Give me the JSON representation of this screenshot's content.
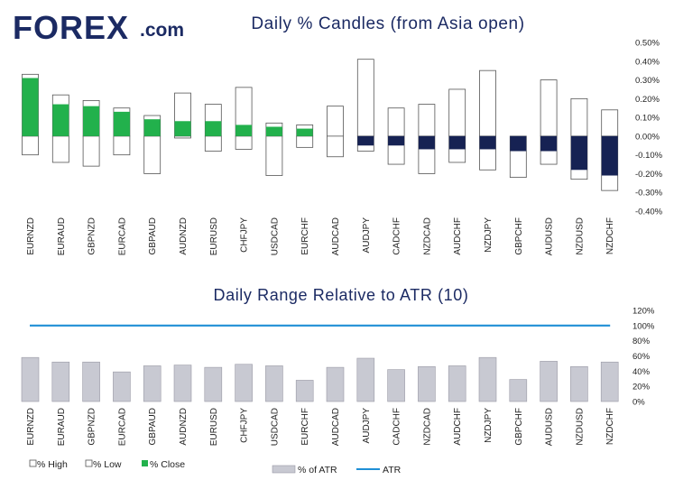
{
  "logo": {
    "main": "FOREX",
    "suffix": ".com",
    "accent_color": "#22b14c",
    "brand_color": "#1b2a63"
  },
  "colors": {
    "bull": "#22b14c",
    "bear": "#162253",
    "range_bar": "#c8c9d2",
    "atr_line": "#1f8fd6",
    "title": "#1b2a63"
  },
  "chart_data": [
    {
      "type": "candlestick",
      "title": "Daily % Candles (from Asia open)",
      "categories": [
        "EURNZD",
        "EURAUD",
        "GBPNZD",
        "EURCAD",
        "GBPAUD",
        "AUDNZD",
        "EURUSD",
        "CHFJPY",
        "USDCAD",
        "EURCHF",
        "AUDCAD",
        "AUDJPY",
        "CADCHF",
        "NZDCAD",
        "AUDCHF",
        "NZDJPY",
        "GBPCHF",
        "AUDUSD",
        "NZDUSD",
        "NZDCHF"
      ],
      "high": [
        0.33,
        0.22,
        0.19,
        0.15,
        0.11,
        0.23,
        0.17,
        0.26,
        0.07,
        0.06,
        0.16,
        0.41,
        0.15,
        0.17,
        0.25,
        0.35,
        0.0,
        0.3,
        0.2,
        0.14
      ],
      "low": [
        -0.1,
        -0.14,
        -0.16,
        -0.1,
        -0.2,
        -0.01,
        -0.08,
        -0.07,
        -0.21,
        -0.06,
        -0.11,
        -0.08,
        -0.15,
        -0.2,
        -0.14,
        -0.18,
        -0.22,
        -0.15,
        -0.23,
        -0.29
      ],
      "close": [
        0.31,
        0.17,
        0.16,
        0.13,
        0.09,
        0.08,
        0.08,
        0.06,
        0.05,
        0.04,
        0.0,
        -0.05,
        -0.05,
        -0.07,
        -0.07,
        -0.07,
        -0.08,
        -0.08,
        -0.18,
        -0.21
      ],
      "ylim": [
        -0.4,
        0.5
      ],
      "yticks": [
        "0.50%",
        "0.40%",
        "0.30%",
        "0.20%",
        "0.10%",
        "0.00%",
        "-0.10%",
        "-0.20%",
        "-0.30%",
        "-0.40%"
      ],
      "legend": [
        "% High",
        "% Low",
        "% Close"
      ],
      "legend_position": "bottom-left"
    },
    {
      "type": "bar",
      "title": "Daily Range Relative to ATR (10)",
      "categories": [
        "EURNZD",
        "EURAUD",
        "GBPNZD",
        "EURCAD",
        "GBPAUD",
        "AUDNZD",
        "EURUSD",
        "CHFJPY",
        "USDCAD",
        "EURCHF",
        "AUDCAD",
        "AUDJPY",
        "CADCHF",
        "NZDCAD",
        "AUDCHF",
        "NZDJPY",
        "GBPCHF",
        "AUDUSD",
        "NZDUSD",
        "NZDCHF"
      ],
      "values": [
        58,
        52,
        52,
        39,
        47,
        48,
        45,
        49,
        47,
        28,
        45,
        57,
        42,
        46,
        47,
        58,
        29,
        53,
        46,
        52
      ],
      "atr_line": 100,
      "ylim": [
        0,
        120
      ],
      "yticks": [
        "120%",
        "100%",
        "80%",
        "60%",
        "40%",
        "20%",
        "0%"
      ],
      "legend": [
        "% of ATR",
        "ATR"
      ],
      "legend_position": "bottom-center"
    }
  ]
}
